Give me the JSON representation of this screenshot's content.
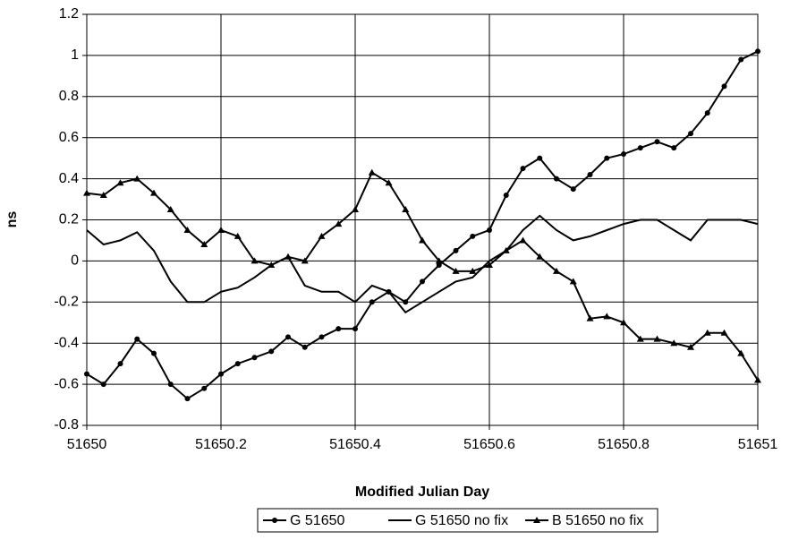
{
  "chart_data": {
    "type": "line",
    "xlabel": "Modified Julian Day",
    "ylabel": "ns",
    "x": [
      51650,
      51650.025,
      51650.05,
      51650.075,
      51650.1,
      51650.125,
      51650.15,
      51650.175,
      51650.2,
      51650.225,
      51650.25,
      51650.275,
      51650.3,
      51650.325,
      51650.35,
      51650.375,
      51650.4,
      51650.425,
      51650.45,
      51650.475,
      51650.5,
      51650.525,
      51650.55,
      51650.575,
      51650.6,
      51650.625,
      51650.65,
      51650.675,
      51650.7,
      51650.725,
      51650.75,
      51650.775,
      51650.8,
      51650.825,
      51650.85,
      51650.875,
      51650.9,
      51650.925,
      51650.95,
      51650.975,
      51651
    ],
    "series": [
      {
        "name": "G 51650",
        "color": "#000000",
        "marker": "circle",
        "values": [
          -0.55,
          -0.6,
          -0.5,
          -0.38,
          -0.45,
          -0.6,
          -0.67,
          -0.62,
          -0.55,
          -0.5,
          -0.47,
          -0.44,
          -0.37,
          -0.42,
          -0.37,
          -0.33,
          -0.33,
          -0.2,
          -0.15,
          -0.2,
          -0.1,
          -0.02,
          0.05,
          0.12,
          0.15,
          0.32,
          0.45,
          0.5,
          0.4,
          0.35,
          0.42,
          0.5,
          0.52,
          0.55,
          0.58,
          0.55,
          0.62,
          0.72,
          0.85,
          0.98,
          1.02
        ]
      },
      {
        "name": "G 51650 no fix",
        "color": "#000000",
        "marker": "none",
        "values": [
          0.15,
          0.08,
          0.1,
          0.14,
          0.05,
          -0.1,
          -0.2,
          -0.2,
          -0.15,
          -0.13,
          -0.08,
          -0.02,
          0.02,
          -0.12,
          -0.15,
          -0.15,
          -0.2,
          -0.12,
          -0.15,
          -0.25,
          -0.2,
          -0.15,
          -0.1,
          -0.08,
          0,
          0.05,
          0.15,
          0.22,
          0.15,
          0.1,
          0.12,
          0.15,
          0.18,
          0.2,
          0.2,
          0.15,
          0.1,
          0.2,
          0.2,
          0.2,
          0.18
        ]
      },
      {
        "name": "B 51650 no fix",
        "color": "#000000",
        "marker": "triangle",
        "values": [
          0.33,
          0.32,
          0.38,
          0.4,
          0.33,
          0.25,
          0.15,
          0.08,
          0.15,
          0.12,
          0,
          -0.02,
          0.02,
          0,
          0.12,
          0.18,
          0.25,
          0.43,
          0.38,
          0.25,
          0.1,
          0,
          -0.05,
          -0.05,
          -0.02,
          0.05,
          0.1,
          0.02,
          -0.05,
          -0.1,
          -0.28,
          -0.27,
          -0.3,
          -0.38,
          -0.38,
          -0.4,
          -0.42,
          -0.35,
          -0.35,
          -0.45,
          -0.58
        ]
      }
    ],
    "xlim": [
      51650,
      51651
    ],
    "xticks": [
      51650,
      51650.2,
      51650.4,
      51650.6,
      51650.8,
      51651
    ],
    "ylim": [
      -0.8,
      1.2
    ],
    "yticks": [
      -0.8,
      -0.6,
      -0.4,
      -0.2,
      0,
      0.2,
      0.4,
      0.6,
      0.8,
      1,
      1.2
    ],
    "grid": true,
    "legend": "bottom"
  }
}
